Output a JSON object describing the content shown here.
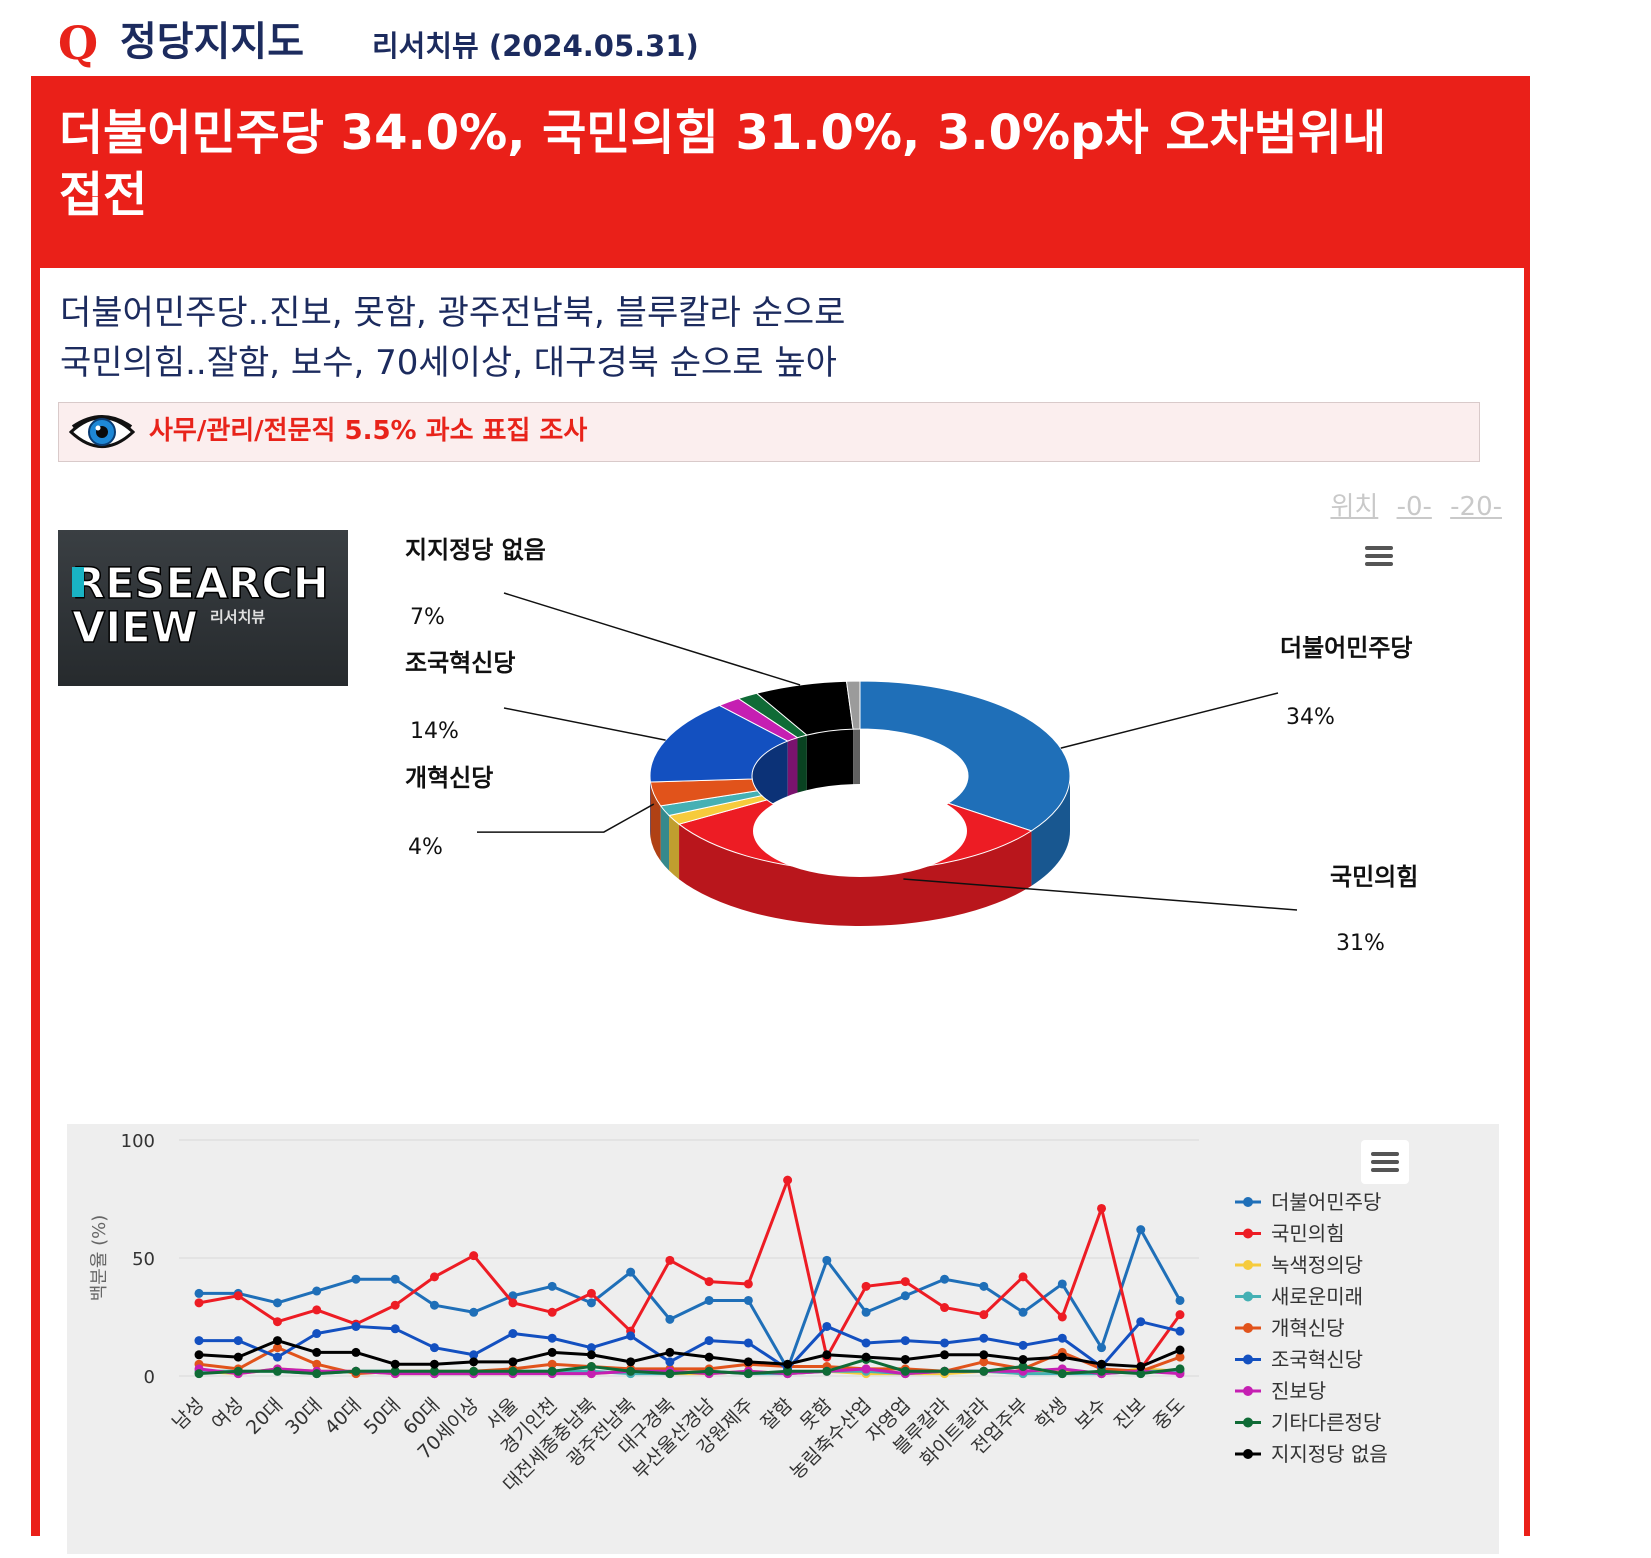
{
  "header": {
    "q_mark": "Q",
    "title": "정당지지도",
    "source": "리서치뷰 (2024.05.31)"
  },
  "headline": {
    "line1": "더불어민주당 34.0%, 국민의힘 31.0%, 3.0%p차 오차범위내",
    "line2": "접전"
  },
  "subtitle": {
    "line1": "더불어민주당..진보, 못함, 광주전남북, 블루칼라 순으로",
    "line2": "국민의힘..잘함, 보수, 70세이상, 대구경북 순으로 높아"
  },
  "notice": {
    "text": "사무/관리/전문직 5.5% 과소 표집 조사",
    "icon": "eye-icon"
  },
  "position_links": {
    "label": "위치",
    "link1": "-0-",
    "link2": "-20-"
  },
  "logo": {
    "line1": "RESEARCH",
    "line2": "VIEW",
    "sub": "리서치뷰"
  },
  "colors": {
    "panel_red": "#ea2019",
    "navy": "#1c2b5e",
    "dem": "#1f6fb8",
    "ppp": "#ed1c24",
    "green": "#f6cb3c",
    "newfuture": "#45b0b4",
    "reform": "#e1531b",
    "rebuild": "#1350c0",
    "progressive": "#c51fb2",
    "other": "#0f6b36",
    "none": "#000000",
    "unknown": "#9b9b9b"
  },
  "chart_data": [
    {
      "type": "pie",
      "donut": true,
      "slices": [
        {
          "name": "더불어민주당",
          "value": 34.0,
          "label": "34%",
          "color": "#1f6fb8"
        },
        {
          "name": "국민의힘",
          "value": 31.0,
          "label": "31%",
          "color": "#ed1c24"
        },
        {
          "name": "녹색정의당",
          "value": 1.6,
          "color": "#f6cb3c"
        },
        {
          "name": "새로운미래",
          "value": 1.7,
          "color": "#45b0b4"
        },
        {
          "name": "개혁신당",
          "value": 4.0,
          "label": "4%",
          "color": "#e1531b"
        },
        {
          "name": "조국혁신당",
          "value": 14.0,
          "label": "14%",
          "color": "#1350c0"
        },
        {
          "name": "진보당",
          "value": 1.8,
          "color": "#c51fb2"
        },
        {
          "name": "기타다른정당",
          "value": 1.6,
          "color": "#0f6b36"
        },
        {
          "name": "지지정당 없음",
          "value": 7.0,
          "label": "7%",
          "color": "#000000"
        },
        {
          "name": "",
          "value": 1.0,
          "color": "#9b9b9b"
        }
      ]
    },
    {
      "type": "line",
      "ylabel": "백분율 (%)",
      "ylim": [
        0,
        100
      ],
      "yticks": [
        0,
        50,
        100
      ],
      "grid": true,
      "legend": "right",
      "categories": [
        "남성",
        "여성",
        "20대",
        "30대",
        "40대",
        "50대",
        "60대",
        "70세이상",
        "서울",
        "경기인천",
        "대전세종충남북",
        "광주전남북",
        "대구경북",
        "부산울산경남",
        "강원제주",
        "잘함",
        "못함",
        "농림축수산업",
        "자영업",
        "블루칼라",
        "화이트칼라",
        "전업주부",
        "학생",
        "보수",
        "진보",
        "중도"
      ],
      "series": [
        {
          "name": "더불어민주당",
          "color": "#1f6fb8",
          "values": [
            35,
            35,
            31,
            36,
            41,
            41,
            30,
            27,
            34,
            38,
            31,
            44,
            24,
            32,
            32,
            3,
            49,
            27,
            34,
            41,
            38,
            27,
            39,
            12,
            62,
            32
          ]
        },
        {
          "name": "국민의힘",
          "color": "#ed1c24",
          "values": [
            31,
            34,
            23,
            28,
            22,
            30,
            42,
            51,
            31,
            27,
            35,
            19,
            49,
            40,
            39,
            83,
            8,
            38,
            40,
            29,
            26,
            42,
            25,
            71,
            3,
            26
          ]
        },
        {
          "name": "녹색정의당",
          "color": "#f6cb3c",
          "values": [
            2,
            1,
            3,
            2,
            2,
            1,
            1,
            1,
            1,
            2,
            1,
            2,
            1,
            1,
            2,
            1,
            2,
            1,
            1,
            1,
            2,
            1,
            2,
            1,
            3,
            2
          ]
        },
        {
          "name": "새로운미래",
          "color": "#45b0b4",
          "values": [
            2,
            2,
            2,
            1,
            2,
            2,
            1,
            1,
            2,
            2,
            2,
            1,
            1,
            2,
            1,
            1,
            2,
            2,
            1,
            2,
            2,
            1,
            1,
            1,
            2,
            2
          ]
        },
        {
          "name": "개혁신당",
          "color": "#e1531b",
          "values": [
            5,
            3,
            12,
            5,
            1,
            2,
            2,
            2,
            3,
            5,
            4,
            3,
            3,
            3,
            5,
            4,
            4,
            3,
            3,
            2,
            6,
            3,
            10,
            3,
            2,
            8
          ]
        },
        {
          "name": "조국혁신당",
          "color": "#1350c0",
          "values": [
            15,
            15,
            8,
            18,
            21,
            20,
            12,
            9,
            18,
            16,
            12,
            17,
            6,
            15,
            14,
            3,
            21,
            14,
            15,
            14,
            16,
            13,
            16,
            4,
            23,
            19
          ]
        },
        {
          "name": "진보당",
          "color": "#c51fb2",
          "values": [
            3,
            1,
            3,
            2,
            2,
            1,
            1,
            1,
            1,
            1,
            1,
            2,
            2,
            1,
            2,
            1,
            2,
            3,
            1,
            2,
            2,
            2,
            3,
            1,
            2,
            1
          ]
        },
        {
          "name": "기타다른정당",
          "color": "#0f6b36",
          "values": [
            1,
            2,
            2,
            1,
            2,
            2,
            2,
            2,
            2,
            2,
            4,
            2,
            1,
            2,
            1,
            2,
            2,
            7,
            2,
            2,
            2,
            4,
            1,
            2,
            1,
            3
          ]
        },
        {
          "name": "지지정당 없음",
          "color": "#000000",
          "values": [
            9,
            8,
            15,
            10,
            10,
            5,
            5,
            6,
            6,
            10,
            9,
            6,
            10,
            8,
            6,
            5,
            9,
            8,
            7,
            9,
            9,
            7,
            8,
            5,
            4,
            11
          ]
        }
      ]
    }
  ]
}
